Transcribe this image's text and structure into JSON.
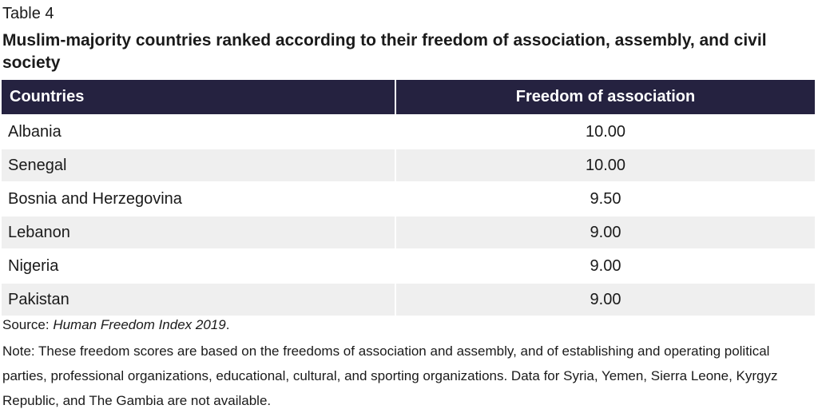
{
  "table_label": "Table 4",
  "title": "Muslim-majority countries ranked according to their freedom of association, assembly, and civil society",
  "columns": [
    "Countries",
    "Freedom of association"
  ],
  "rows": [
    {
      "country": "Albania",
      "value": "10.00"
    },
    {
      "country": "Senegal",
      "value": "10.00"
    },
    {
      "country": "Bosnia and Herzegovina",
      "value": "9.50"
    },
    {
      "country": "Lebanon",
      "value": "9.00"
    },
    {
      "country": "Nigeria",
      "value": "9.00"
    },
    {
      "country": "Pakistan",
      "value": "9.00"
    }
  ],
  "source": {
    "prefix": "Source: ",
    "title": "Human Freedom Index 2019",
    "suffix": "."
  },
  "note": "Note: These freedom scores are based on the freedoms of association and assembly, and of establishing and operating political parties, professional organizations, educational, cultural, and sporting organizations. Data for Syria, Yemen, Sierra Leone, Kyrgyz Republic, and The Gambia are not available.",
  "colors": {
    "header_bg": "#252240",
    "header_text": "#ffffff",
    "stripe": "#efefef"
  }
}
